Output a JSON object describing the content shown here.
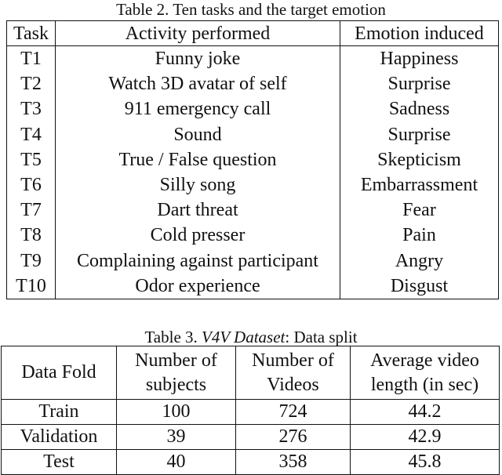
{
  "table2": {
    "caption": "Table 2. Ten tasks and the target emotion",
    "headers": [
      "Task",
      "Activity performed",
      "Emotion induced"
    ],
    "rows": [
      [
        "T1",
        "Funny joke",
        "Happiness"
      ],
      [
        "T2",
        "Watch 3D avatar of self",
        "Surprise"
      ],
      [
        "T3",
        "911 emergency call",
        "Sadness"
      ],
      [
        "T4",
        "Sound",
        "Surprise"
      ],
      [
        "T5",
        "True / False question",
        "Skepticism"
      ],
      [
        "T6",
        "Silly song",
        "Embarrassment"
      ],
      [
        "T7",
        "Dart threat",
        "Fear"
      ],
      [
        "T8",
        "Cold presser",
        "Pain"
      ],
      [
        "T9",
        "Complaining against participant",
        "Angry"
      ],
      [
        "T10",
        "Odor experience",
        "Disgust"
      ]
    ]
  },
  "table3": {
    "caption_prefix": "Table 3. ",
    "caption_italic": "V4V Dataset",
    "caption_suffix": ": Data split",
    "headers": [
      [
        "Data Fold"
      ],
      [
        "Number of",
        "subjects"
      ],
      [
        "Number of",
        "Videos"
      ],
      [
        "Average video",
        "length (in sec)"
      ]
    ],
    "rows": [
      [
        "Train",
        "100",
        "724",
        "44.2"
      ],
      [
        "Validation",
        "39",
        "276",
        "42.9"
      ],
      [
        "Test",
        "40",
        "358",
        "45.8"
      ]
    ]
  }
}
